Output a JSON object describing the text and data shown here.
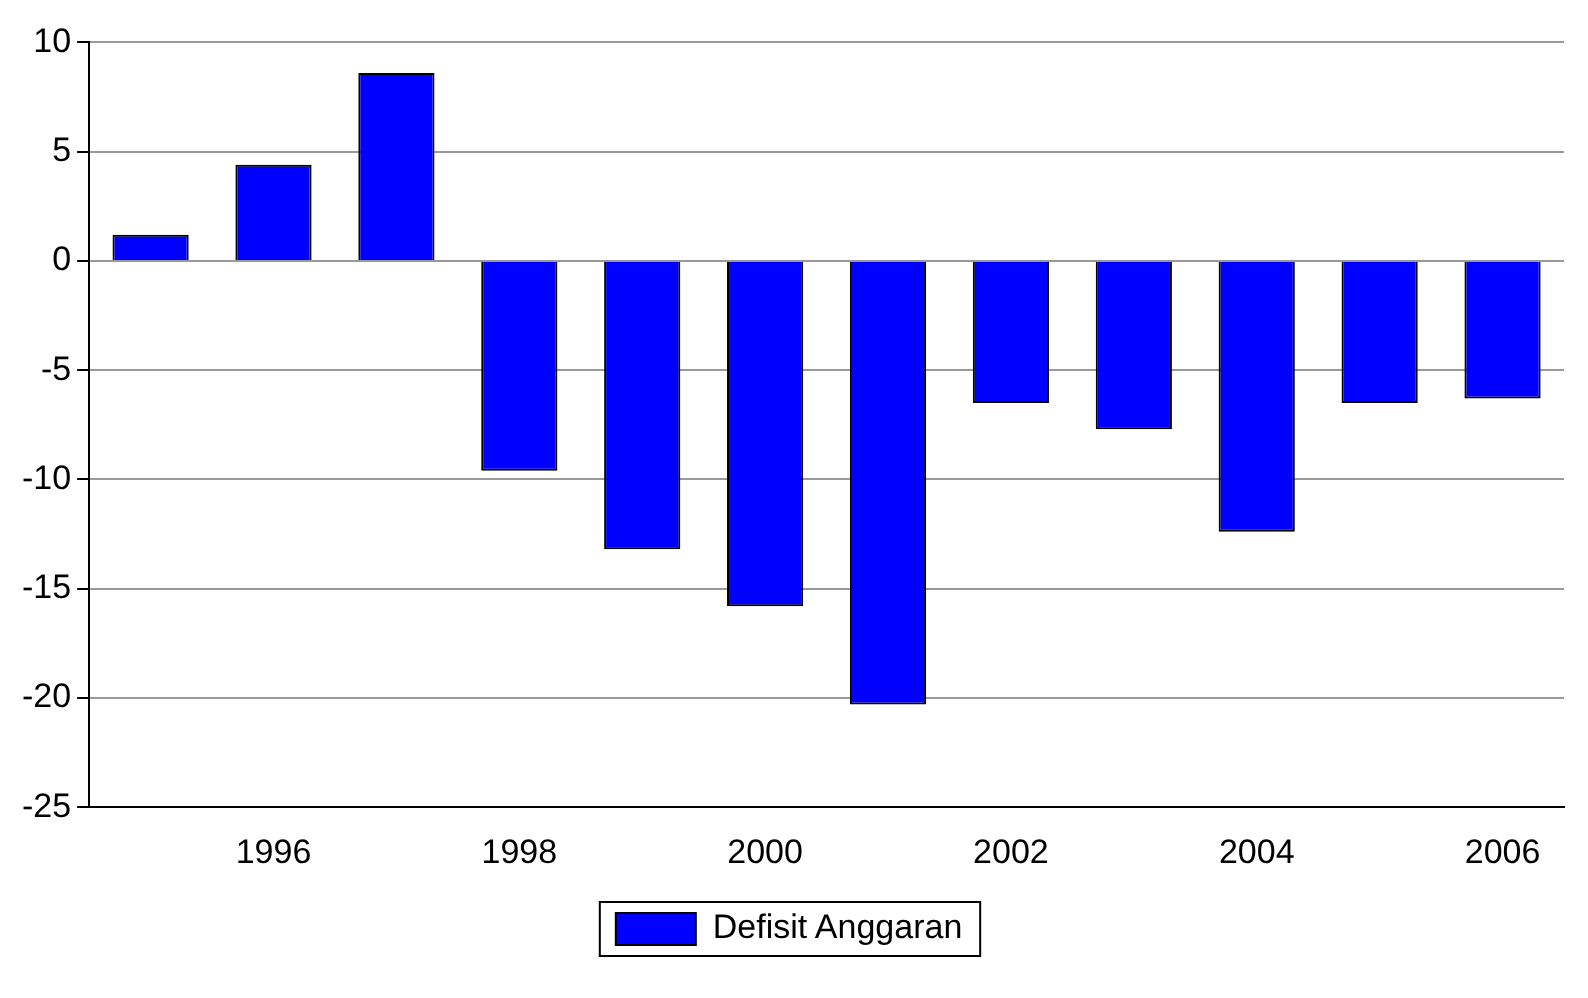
{
  "chart_data": {
    "type": "bar",
    "categories": [
      null,
      "1996",
      null,
      "1998",
      null,
      "2000",
      null,
      "2002",
      null,
      "2004",
      null,
      "2006"
    ],
    "series": [
      {
        "name": "Defisit Anggaran",
        "color": "#0000ff",
        "values": [
          1.2,
          4.4,
          8.6,
          -9.6,
          -13.2,
          -15.8,
          -20.3,
          -6.5,
          -7.7,
          -12.4,
          -6.5,
          -6.3
        ]
      }
    ],
    "ylim": [
      -25,
      10
    ],
    "yticks": [
      -25,
      -20,
      -15,
      -10,
      -5,
      0,
      5,
      10
    ],
    "grid": "y",
    "legend": "bottom"
  }
}
